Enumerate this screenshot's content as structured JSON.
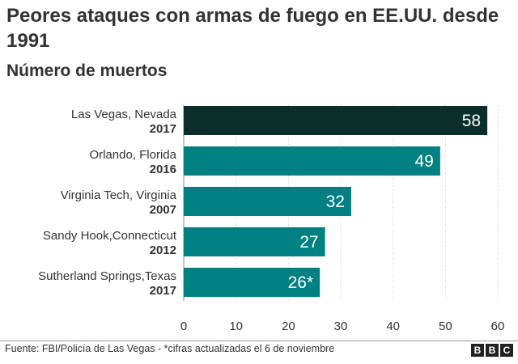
{
  "header": {
    "title": "Peores ataques con armas de fuego en EE.UU. desde 1991",
    "subtitle": "Número de muertos"
  },
  "colors": {
    "highlight": "#0b2e2b",
    "bar": "#008080",
    "grid": "#c8c8c8",
    "axis": "#888888"
  },
  "chart_data": {
    "type": "bar",
    "orientation": "horizontal",
    "title": "Peores ataques con armas de fuego en EE.UU. desde 1991",
    "subtitle": "Número de muertos",
    "xlabel": "",
    "ylabel": "",
    "xlim": [
      0,
      60
    ],
    "ticks": [
      0,
      10,
      20,
      30,
      40,
      50,
      60
    ],
    "grid": true,
    "categories": [
      {
        "name": "Las Vegas, Nevada",
        "year": "2017"
      },
      {
        "name": "Orlando, Florida",
        "year": "2016"
      },
      {
        "name": "Virginia Tech, Virginia",
        "year": "2007"
      },
      {
        "name": "Sandy Hook,Connecticut",
        "year": "2012"
      },
      {
        "name": "Sutherland Springs,Texas",
        "year": "2017"
      }
    ],
    "values": [
      58,
      49,
      32,
      27,
      26
    ],
    "value_labels": [
      "58",
      "49",
      "32",
      "27",
      "26*"
    ],
    "highlight_index": 0
  },
  "footer": {
    "source": "Fuente: FBI/Policía de Las Vegas - *cifras actualizadas el 6 de noviembre",
    "logo_letters": [
      "B",
      "B",
      "C"
    ]
  }
}
